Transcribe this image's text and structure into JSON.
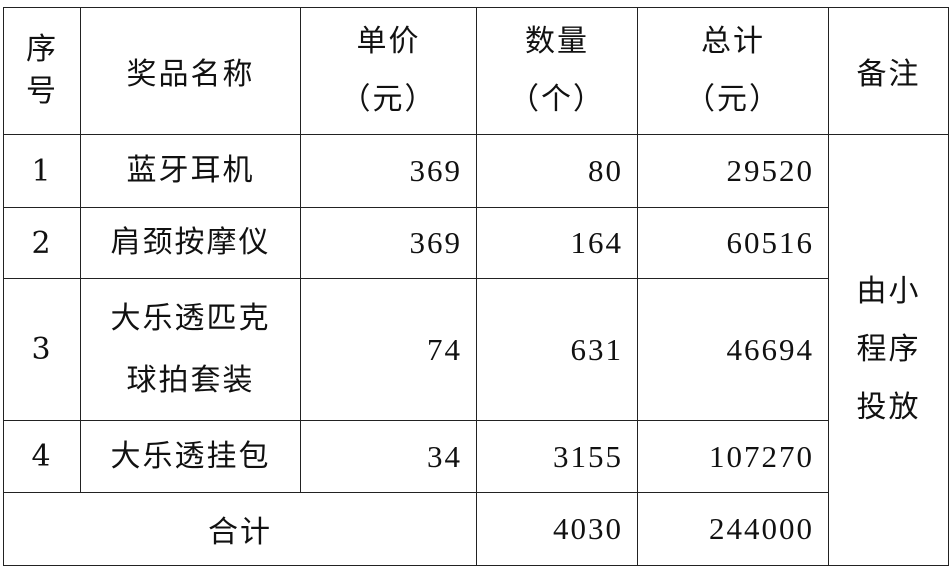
{
  "headers": {
    "index": [
      "序",
      "号"
    ],
    "name": "奖品名称",
    "price": [
      "单价",
      "（元）"
    ],
    "qty": [
      "数量",
      "（个）"
    ],
    "total": [
      "总计",
      "（元）"
    ],
    "note": "备注"
  },
  "rows": [
    {
      "index": "1",
      "name": [
        "蓝牙耳机"
      ],
      "price": "369",
      "qty": "80",
      "total": "29520"
    },
    {
      "index": "2",
      "name": [
        "肩颈按摩仪"
      ],
      "price": "369",
      "qty": "164",
      "total": "60516"
    },
    {
      "index": "3",
      "name": [
        "大乐透匹克",
        "球拍套装"
      ],
      "price": "74",
      "qty": "631",
      "total": "46694"
    },
    {
      "index": "4",
      "name": [
        "大乐透挂包"
      ],
      "price": "34",
      "qty": "3155",
      "total": "107270"
    }
  ],
  "note_text": [
    "由小",
    "程序",
    "投放"
  ],
  "summary": {
    "label": "合计",
    "qty": "4030",
    "total": "244000"
  }
}
